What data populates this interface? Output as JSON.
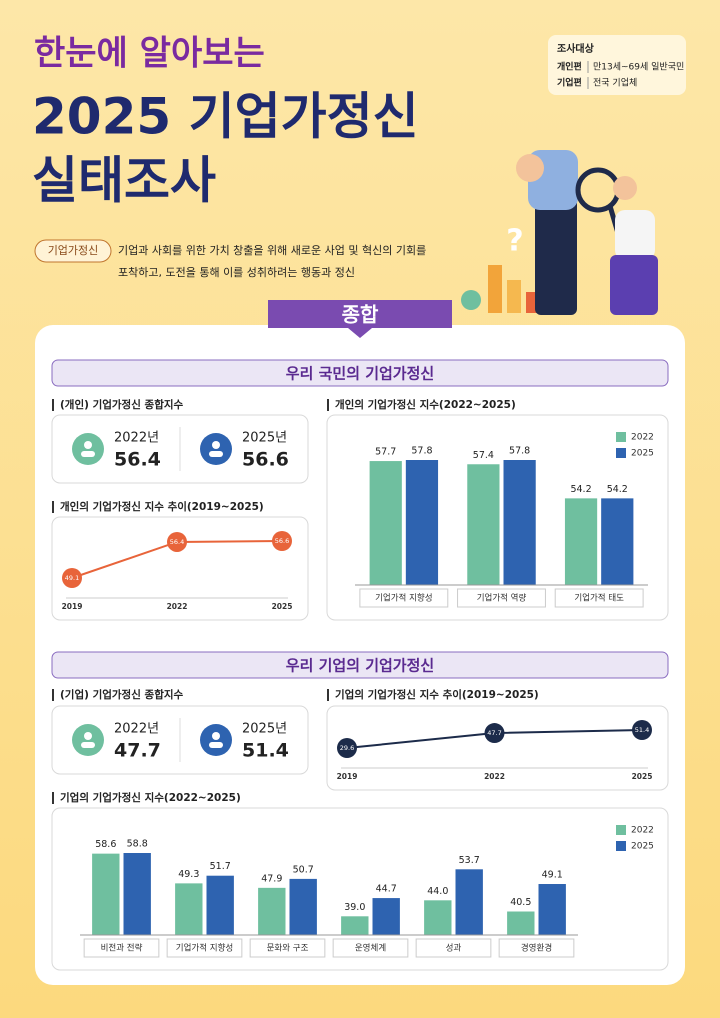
{
  "header": {
    "title_lines": [
      "한눈에 알아보는",
      "2025 기업가정신",
      "실태조사"
    ]
  },
  "survey": {
    "label": "조사대상",
    "rows": [
      {
        "name": "개인편",
        "value": "만13세~69세 일반국민"
      },
      {
        "name": "기업편",
        "value": "전국 기업체"
      }
    ]
  },
  "definition": {
    "tag": "기업가정신",
    "lines": [
      "기업과 사회를 위한 가치 창출을 위해 새로운 사업 및 혁신의 기회를",
      "포착하고, 도전을 통해 이를 성취하려는 행동과 정신"
    ]
  },
  "tab": "종합",
  "sections": [
    {
      "title": "우리 국민의 기업가정신"
    },
    {
      "title": "우리 기업의 기업가정신"
    }
  ],
  "summary_cards": [
    {
      "title": "(개인) 기업가정신 종합지수",
      "items": [
        {
          "year": "2022년",
          "value": 56.4
        },
        {
          "year": "2025년",
          "value": 56.6
        }
      ]
    },
    {
      "title": "(기업) 기업가정신 종합지수",
      "items": [
        {
          "year": "2022년",
          "value": 47.7
        },
        {
          "year": "2025년",
          "value": 51.4
        }
      ]
    }
  ],
  "chart_data": [
    {
      "type": "bar",
      "title": "개인의 기업가정신 지수(2022~2025)",
      "categories": [
        "기업가적 지향성",
        "기업가적 역량",
        "기업가적 태도"
      ],
      "series": [
        {
          "name": "2022",
          "color": "#6fbf9f",
          "values": [
            57.7,
            57.4,
            54.2
          ]
        },
        {
          "name": "2025",
          "color": "#2e63b0",
          "values": [
            57.8,
            57.8,
            54.2
          ]
        }
      ]
    },
    {
      "type": "line",
      "title": "개인의 기업가정신 지수 추이(2019~2025)",
      "categories": [
        "2019",
        "2022",
        "2025"
      ],
      "values": [
        49.1,
        56.4,
        56.6
      ],
      "color": "#e8643a"
    },
    {
      "type": "line",
      "title": "기업의 기업가정신 지수 추이(2019~2025)",
      "categories": [
        "2019",
        "2022",
        "2025"
      ],
      "values": [
        29.6,
        47.7,
        51.4
      ],
      "color": "#1c2b4a"
    },
    {
      "type": "bar",
      "title": "기업의 기업가정신 지수(2022~2025)",
      "categories": [
        "비전과 전략",
        "기업가적 지향성",
        "문화와 구조",
        "운영체계",
        "성과",
        "경영환경"
      ],
      "series": [
        {
          "name": "2022",
          "color": "#6fbf9f",
          "values": [
            58.6,
            49.3,
            47.9,
            39.0,
            44.0,
            40.5
          ],
          "value_labels": [
            "58.6",
            "49.3",
            "47.9",
            "39.0",
            "44.0",
            "40.5"
          ]
        },
        {
          "name": "2025",
          "color": "#2e63b0",
          "values": [
            58.8,
            51.7,
            50.7,
            44.7,
            53.7,
            49.1
          ]
        }
      ]
    }
  ]
}
